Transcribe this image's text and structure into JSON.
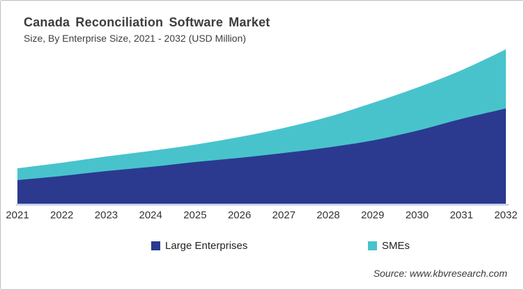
{
  "header": {
    "title": "Canada Reconciliation Software Market",
    "subtitle": "Size, By Enterprise Size, 2021 - 2032 (USD Million)"
  },
  "source": "Source: www.kbvresearch.com",
  "colors": {
    "large_enterprises": "#2b3a8f",
    "smes": "#48c3cc",
    "axis_line": "#aab8da",
    "text": "#3d3d3d"
  },
  "chart_data": {
    "type": "area",
    "stacked": true,
    "title": "Canada Reconciliation Software Market",
    "subtitle": "Size, By Enterprise Size, 2021 - 2032 (USD Million)",
    "categories": [
      "2021",
      "2022",
      "2023",
      "2024",
      "2025",
      "2026",
      "2027",
      "2028",
      "2029",
      "2030",
      "2031",
      "2032"
    ],
    "series": [
      {
        "name": "Large Enterprises",
        "color": "#2b3a8f",
        "values": [
          34,
          40,
          47,
          53,
          60,
          66,
          73,
          81,
          91,
          105,
          122,
          137
        ]
      },
      {
        "name": "SMEs",
        "color": "#48c3cc",
        "values": [
          17,
          19,
          21,
          23,
          25,
          30,
          36,
          44,
          54,
          62,
          70,
          85
        ]
      }
    ],
    "totals": [
      51,
      59,
      68,
      76,
      85,
      96,
      109,
      125,
      145,
      167,
      192,
      222
    ],
    "xlabel": "",
    "ylabel": "USD Million",
    "y_axis_visible": false,
    "gridlines": false,
    "legend_position": "bottom",
    "value_note": "No y-axis scale shown in figure; series values are relative estimates read from chart geometry"
  }
}
